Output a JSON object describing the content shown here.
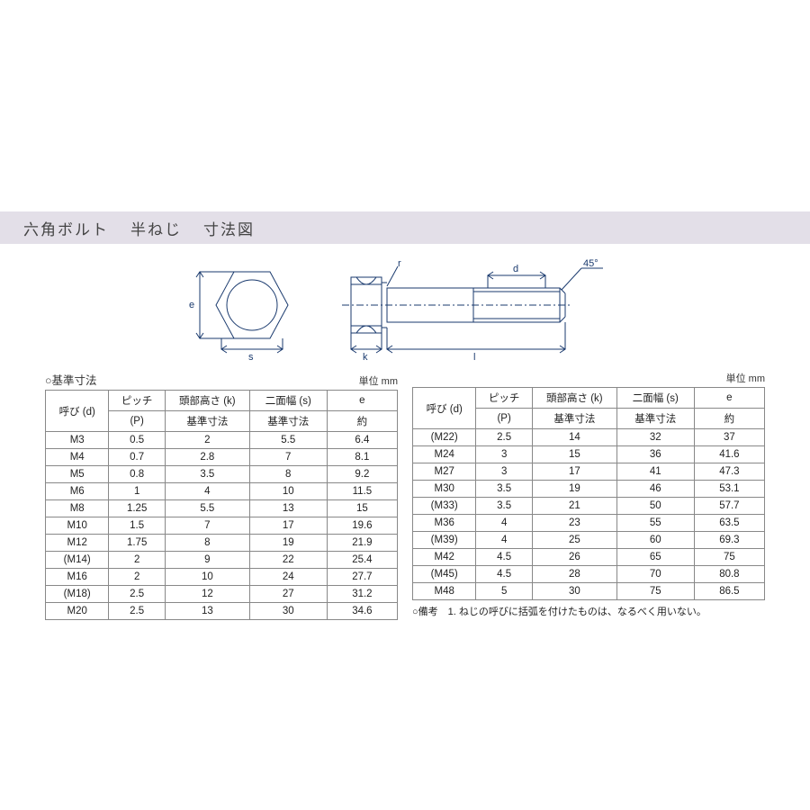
{
  "title": {
    "t1": "六角ボルト",
    "t2": "半ねじ",
    "t3": "寸法図"
  },
  "diagram": {
    "labels": {
      "e": "e",
      "s": "s",
      "r": "r",
      "k": "k",
      "l": "l",
      "d": "d",
      "angle": "45°"
    },
    "stroke": "#1a3a6e",
    "text_color": "#1a3a6e",
    "fontsize": 11
  },
  "left_table": {
    "caption": "○基準寸法",
    "unit": "単位 mm",
    "headers": {
      "d_top": "呼び (d)",
      "p_top": "ピッチ",
      "p_sub": "(P)",
      "k_top": "頭部高さ (k)",
      "k_sub": "基準寸法",
      "s_top": "二面幅 (s)",
      "s_sub": "基準寸法",
      "e_top": "e",
      "e_sub": "約"
    },
    "rows": [
      [
        "M3",
        "0.5",
        "2",
        "5.5",
        "6.4"
      ],
      [
        "M4",
        "0.7",
        "2.8",
        "7",
        "8.1"
      ],
      [
        "M5",
        "0.8",
        "3.5",
        "8",
        "9.2"
      ],
      [
        "M6",
        "1",
        "4",
        "10",
        "11.5"
      ],
      [
        "M8",
        "1.25",
        "5.5",
        "13",
        "15"
      ],
      [
        "M10",
        "1.5",
        "7",
        "17",
        "19.6"
      ],
      [
        "M12",
        "1.75",
        "8",
        "19",
        "21.9"
      ],
      [
        "(M14)",
        "2",
        "9",
        "22",
        "25.4"
      ],
      [
        "M16",
        "2",
        "10",
        "24",
        "27.7"
      ],
      [
        "(M18)",
        "2.5",
        "12",
        "27",
        "31.2"
      ],
      [
        "M20",
        "2.5",
        "13",
        "30",
        "34.6"
      ]
    ]
  },
  "right_table": {
    "unit": "単位 mm",
    "headers": {
      "d_top": "呼び (d)",
      "p_top": "ピッチ",
      "p_sub": "(P)",
      "k_top": "頭部高さ (k)",
      "k_sub": "基準寸法",
      "s_top": "二面幅 (s)",
      "s_sub": "基準寸法",
      "e_top": "e",
      "e_sub": "約"
    },
    "rows": [
      [
        "(M22)",
        "2.5",
        "14",
        "32",
        "37"
      ],
      [
        "M24",
        "3",
        "15",
        "36",
        "41.6"
      ],
      [
        "M27",
        "3",
        "17",
        "41",
        "47.3"
      ],
      [
        "M30",
        "3.5",
        "19",
        "46",
        "53.1"
      ],
      [
        "(M33)",
        "3.5",
        "21",
        "50",
        "57.7"
      ],
      [
        "M36",
        "4",
        "23",
        "55",
        "63.5"
      ],
      [
        "(M39)",
        "4",
        "25",
        "60",
        "69.3"
      ],
      [
        "M42",
        "4.5",
        "26",
        "65",
        "75"
      ],
      [
        "(M45)",
        "4.5",
        "28",
        "70",
        "80.8"
      ],
      [
        "M48",
        "5",
        "30",
        "75",
        "86.5"
      ]
    ],
    "note": "○備考　1. ねじの呼びに括弧を付けたものは、なるべく用いない。"
  }
}
